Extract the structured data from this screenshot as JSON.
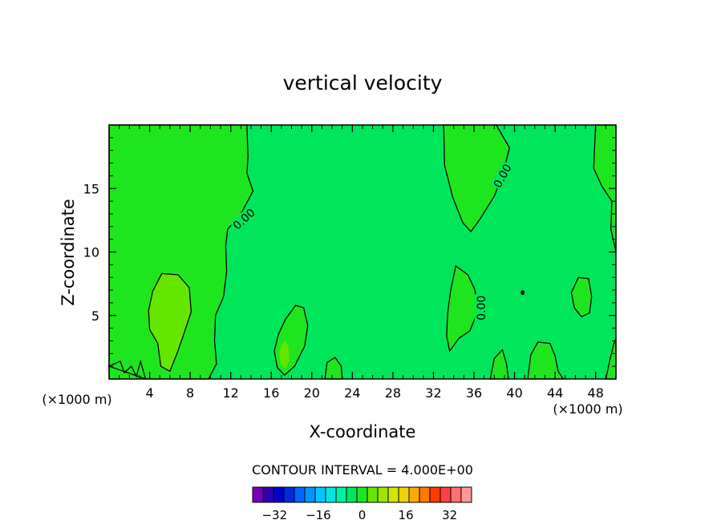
{
  "chart_data": {
    "type": "contour",
    "title": "vertical velocity",
    "xlabel": "X-coordinate",
    "ylabel": "Z-coordinate",
    "x_unit": "(×1000 m)",
    "z_unit": "(×1000 m)",
    "xlim": [
      0,
      50
    ],
    "ylim": [
      0,
      20
    ],
    "x_ticks": [
      4,
      8,
      12,
      16,
      20,
      24,
      28,
      32,
      36,
      40,
      44,
      48
    ],
    "y_ticks": [
      5,
      10,
      15
    ],
    "contour_labels": [
      {
        "text": "0.00",
        "x": 13.3,
        "z": 12.6,
        "angle": -42
      },
      {
        "text": "0.00",
        "x": 38.8,
        "z": 16.0,
        "angle": -62
      },
      {
        "text": "0.00",
        "x": 36.7,
        "z": 5.6,
        "angle": -90
      }
    ],
    "contour_interval_text": "CONTOUR INTERVAL = 4.000E+00",
    "colorbar": {
      "tick_labels": [
        "-32",
        "-16",
        "0",
        "16",
        "32"
      ],
      "tick_values": [
        -32,
        -16,
        0,
        16,
        32
      ],
      "levels": [
        -40,
        -36,
        -32,
        -28,
        -24,
        -20,
        -16,
        -12,
        -8,
        -4,
        0,
        4,
        8,
        12,
        16,
        20,
        24,
        28,
        32,
        36,
        40
      ],
      "colors": [
        "#7a00b8",
        "#2d00b4",
        "#0000c8",
        "#0028e6",
        "#0064ff",
        "#0096ff",
        "#00c8ff",
        "#00e6e6",
        "#00f0a0",
        "#00e65a",
        "#1ee61e",
        "#64e600",
        "#a0e600",
        "#d2e600",
        "#f0d200",
        "#ffaa00",
        "#ff7800",
        "#ff3c00",
        "#ff4040",
        "#ff7070",
        "#ff9a9a"
      ]
    },
    "field_colors": {
      "background": "#00e65a",
      "positive_weak": "#1ee61e",
      "positive_mid": "#64e600"
    }
  }
}
